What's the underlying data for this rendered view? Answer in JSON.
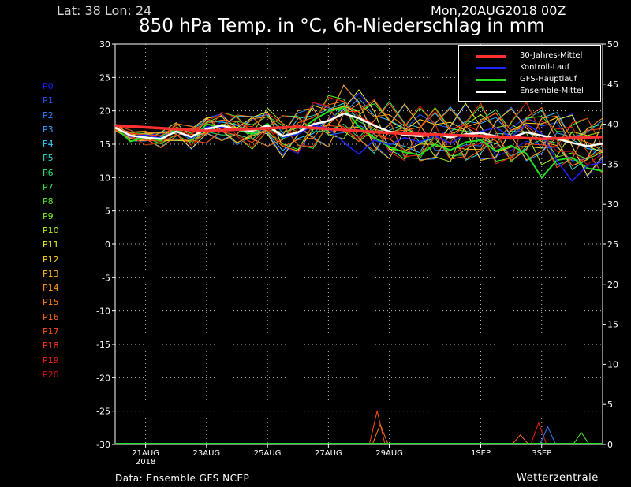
{
  "header": {
    "location": "Lat: 38 Lon: 24",
    "run_date": "Mon,20AUG2018 00Z",
    "title": "850 hPa Temp. in °C, 6h-Niederschlag in mm"
  },
  "footer": {
    "source": "Data: Ensemble GFS NCEP",
    "brand": "Wetterzentrale"
  },
  "members": [
    {
      "label": "P0",
      "color": "#1c1cff"
    },
    {
      "label": "P1",
      "color": "#2550ff"
    },
    {
      "label": "P2",
      "color": "#2e7cff"
    },
    {
      "label": "P3",
      "color": "#33a4ff"
    },
    {
      "label": "P4",
      "color": "#30ccff"
    },
    {
      "label": "P5",
      "color": "#2ed8c8"
    },
    {
      "label": "P6",
      "color": "#2ee47a"
    },
    {
      "label": "P7",
      "color": "#2ee83c"
    },
    {
      "label": "P8",
      "color": "#4cf022"
    },
    {
      "label": "P9",
      "color": "#7cf020"
    },
    {
      "label": "P10",
      "color": "#b0f020"
    },
    {
      "label": "P11",
      "color": "#e8f020"
    },
    {
      "label": "P12",
      "color": "#ffd820"
    },
    {
      "label": "P13",
      "color": "#ffb41c"
    },
    {
      "label": "P14",
      "color": "#ff9818"
    },
    {
      "label": "P15",
      "color": "#ff8016"
    },
    {
      "label": "P16",
      "color": "#ff6814"
    },
    {
      "label": "P17",
      "color": "#ff5012"
    },
    {
      "label": "P18",
      "color": "#ff3810"
    },
    {
      "label": "P19",
      "color": "#f0200e"
    },
    {
      "label": "P20",
      "color": "#d0100c"
    }
  ],
  "legend": [
    {
      "label": "30-Jahres-Mittel",
      "color": "#ff3030"
    },
    {
      "label": "Kontroll-Lauf",
      "color": "#2222ff"
    },
    {
      "label": "GFS-Hauptlauf",
      "color": "#22dd22"
    },
    {
      "label": "Ensemble-Mittel",
      "color": "#ffffff"
    }
  ],
  "chart_data": {
    "type": "line",
    "title": "850 hPa Temp. in °C, 6h-Niederschlag in mm",
    "ylabel_left": "°C",
    "ylabel_right": "mm",
    "ylim_left": [
      -30,
      30
    ],
    "ylim_right": [
      0,
      50
    ],
    "yticks_left": [
      30,
      25,
      20,
      15,
      10,
      5,
      0,
      -5,
      -10,
      -15,
      -20,
      -25,
      -30
    ],
    "yticks_right": [
      50,
      45,
      40,
      35,
      30,
      25,
      20,
      15,
      10,
      5,
      0
    ],
    "x_ticks": [
      {
        "day": 1,
        "label": "21AUG",
        "sub": "2018"
      },
      {
        "day": 3,
        "label": "23AUG",
        "sub": ""
      },
      {
        "day": 5,
        "label": "25AUG",
        "sub": ""
      },
      {
        "day": 7,
        "label": "27AUG",
        "sub": ""
      },
      {
        "day": 9,
        "label": "29AUG",
        "sub": ""
      },
      {
        "day": 12,
        "label": "1SEP",
        "sub": ""
      },
      {
        "day": 14,
        "label": "3SEP",
        "sub": ""
      }
    ],
    "x_range_days": [
      0,
      16
    ],
    "grid": true,
    "legend_position": "top-right",
    "climate_mean": {
      "name": "30-Jahres-Mittel",
      "points": [
        [
          0,
          17.8
        ],
        [
          3,
          17.0
        ],
        [
          6,
          17.6
        ],
        [
          9,
          16.7
        ],
        [
          12,
          16.2
        ],
        [
          14,
          15.8
        ],
        [
          16,
          16.1
        ]
      ]
    },
    "ensemble_mean": {
      "name": "Ensemble-Mittel",
      "points": [
        [
          0,
          17.5
        ],
        [
          0.5,
          16.3
        ],
        [
          1,
          16.0
        ],
        [
          1.5,
          15.8
        ],
        [
          2,
          16.9
        ],
        [
          2.5,
          16.1
        ],
        [
          3,
          17.3
        ],
        [
          3.5,
          17.8
        ],
        [
          4,
          17.2
        ],
        [
          4.5,
          17.0
        ],
        [
          5,
          17.8
        ],
        [
          5.5,
          16.2
        ],
        [
          6,
          16.8
        ],
        [
          6.5,
          18.0
        ],
        [
          7,
          18.5
        ],
        [
          7.5,
          19.6
        ],
        [
          8,
          18.9
        ],
        [
          8.5,
          17.8
        ],
        [
          9,
          16.9
        ],
        [
          9.5,
          16.4
        ],
        [
          10,
          16.2
        ],
        [
          10.5,
          16.6
        ],
        [
          11,
          16.0
        ],
        [
          11.5,
          16.5
        ],
        [
          12,
          16.7
        ],
        [
          12.5,
          16.2
        ],
        [
          13,
          16.0
        ],
        [
          13.5,
          16.8
        ],
        [
          14,
          16.3
        ],
        [
          14.5,
          15.8
        ],
        [
          15,
          15.2
        ],
        [
          15.5,
          14.7
        ],
        [
          16,
          15.1
        ]
      ]
    },
    "control_run": {
      "name": "Kontroll-Lauf",
      "points": [
        [
          0,
          17.6
        ],
        [
          0.5,
          16.1
        ],
        [
          1,
          16.4
        ],
        [
          1.5,
          15.9
        ],
        [
          2,
          17.0
        ],
        [
          2.5,
          15.8
        ],
        [
          3,
          17.6
        ],
        [
          3.5,
          17.5
        ],
        [
          4,
          17.3
        ],
        [
          4.5,
          16.9
        ],
        [
          5,
          17.9
        ],
        [
          5.5,
          16.0
        ],
        [
          6,
          16.5
        ],
        [
          6.5,
          17.8
        ],
        [
          7,
          17.4
        ],
        [
          7.5,
          15.3
        ],
        [
          8,
          13.5
        ],
        [
          8.5,
          15.6
        ],
        [
          9,
          14.9
        ],
        [
          9.5,
          16.0
        ],
        [
          10,
          15.3
        ],
        [
          10.5,
          16.3
        ],
        [
          11,
          15.1
        ],
        [
          11.5,
          16.5
        ],
        [
          12,
          16.9
        ],
        [
          12.5,
          17.5
        ],
        [
          13,
          16.1
        ],
        [
          13.5,
          18.0
        ],
        [
          14,
          16.6
        ],
        [
          14.5,
          12.5
        ],
        [
          15,
          9.5
        ],
        [
          15.5,
          11.8
        ],
        [
          16,
          12.3
        ]
      ]
    },
    "main_run": {
      "name": "GFS-Hauptlauf",
      "points": [
        [
          0,
          17.6
        ],
        [
          0.5,
          15.4
        ],
        [
          1,
          16.1
        ],
        [
          1.5,
          15.5
        ],
        [
          2,
          17.3
        ],
        [
          2.5,
          15.6
        ],
        [
          3,
          18.0
        ],
        [
          3.5,
          17.6
        ],
        [
          4,
          17.2
        ],
        [
          4.5,
          16.5
        ],
        [
          5,
          18.1
        ],
        [
          5.5,
          15.9
        ],
        [
          6,
          16.7
        ],
        [
          6.5,
          18.6
        ],
        [
          7,
          19.9
        ],
        [
          7.5,
          20.5
        ],
        [
          8,
          17.6
        ],
        [
          8.5,
          16.0
        ],
        [
          9,
          14.6
        ],
        [
          9.5,
          13.8
        ],
        [
          10,
          13.4
        ],
        [
          10.5,
          15.0
        ],
        [
          11,
          14.1
        ],
        [
          11.5,
          15.3
        ],
        [
          12,
          15.6
        ],
        [
          12.5,
          14.0
        ],
        [
          13,
          14.8
        ],
        [
          13.5,
          13.6
        ],
        [
          14,
          10.0
        ],
        [
          14.5,
          12.6
        ],
        [
          15,
          13.0
        ],
        [
          15.5,
          11.4
        ],
        [
          16,
          11.0
        ]
      ]
    },
    "precip_peaks": [
      {
        "day": 8.6,
        "mm": 4.2,
        "color": "#ff5012"
      },
      {
        "day": 8.7,
        "mm": 2.5,
        "color": "#ff8016"
      },
      {
        "day": 13.9,
        "mm": 2.7,
        "color": "#f0200e"
      },
      {
        "day": 14.2,
        "mm": 2.2,
        "color": "#2e7cff"
      },
      {
        "day": 15.3,
        "mm": 1.5,
        "color": "#4cf022"
      },
      {
        "day": 13.3,
        "mm": 1.2,
        "color": "#ff6814"
      }
    ]
  }
}
